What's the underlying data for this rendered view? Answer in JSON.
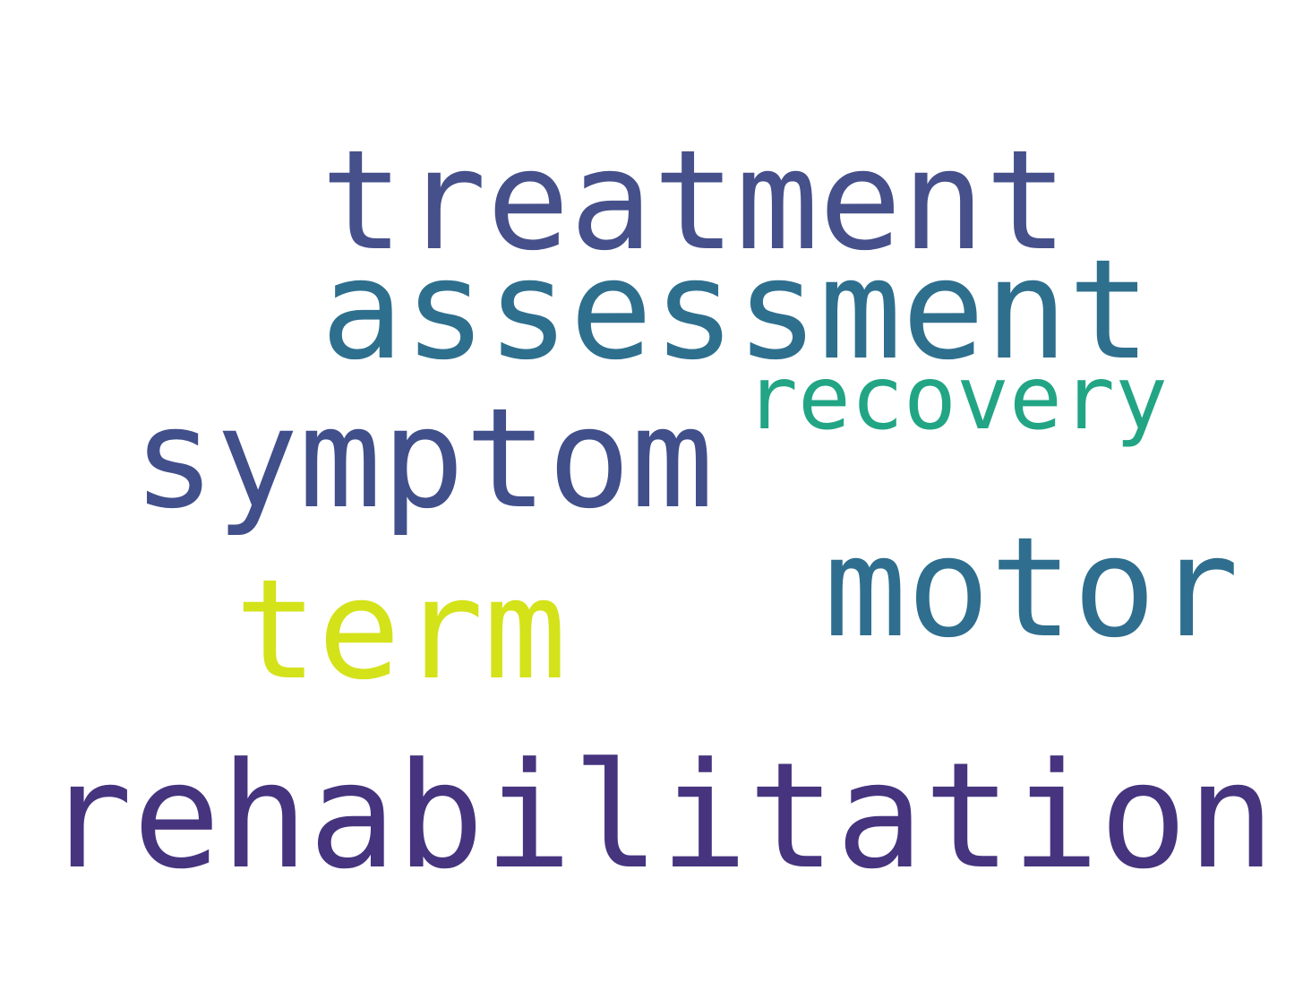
{
  "words": [
    {
      "text": "treatment",
      "color": "#46508b"
    },
    {
      "text": "assessment",
      "color": "#2f6f8e"
    },
    {
      "text": "recovery",
      "color": "#22a584"
    },
    {
      "text": "symptom",
      "color": "#414f8b"
    },
    {
      "text": "motor",
      "color": "#2f6e8e"
    },
    {
      "text": "term",
      "color": "#d4e21a"
    },
    {
      "text": "rehabilitation",
      "color": "#46347f"
    }
  ]
}
